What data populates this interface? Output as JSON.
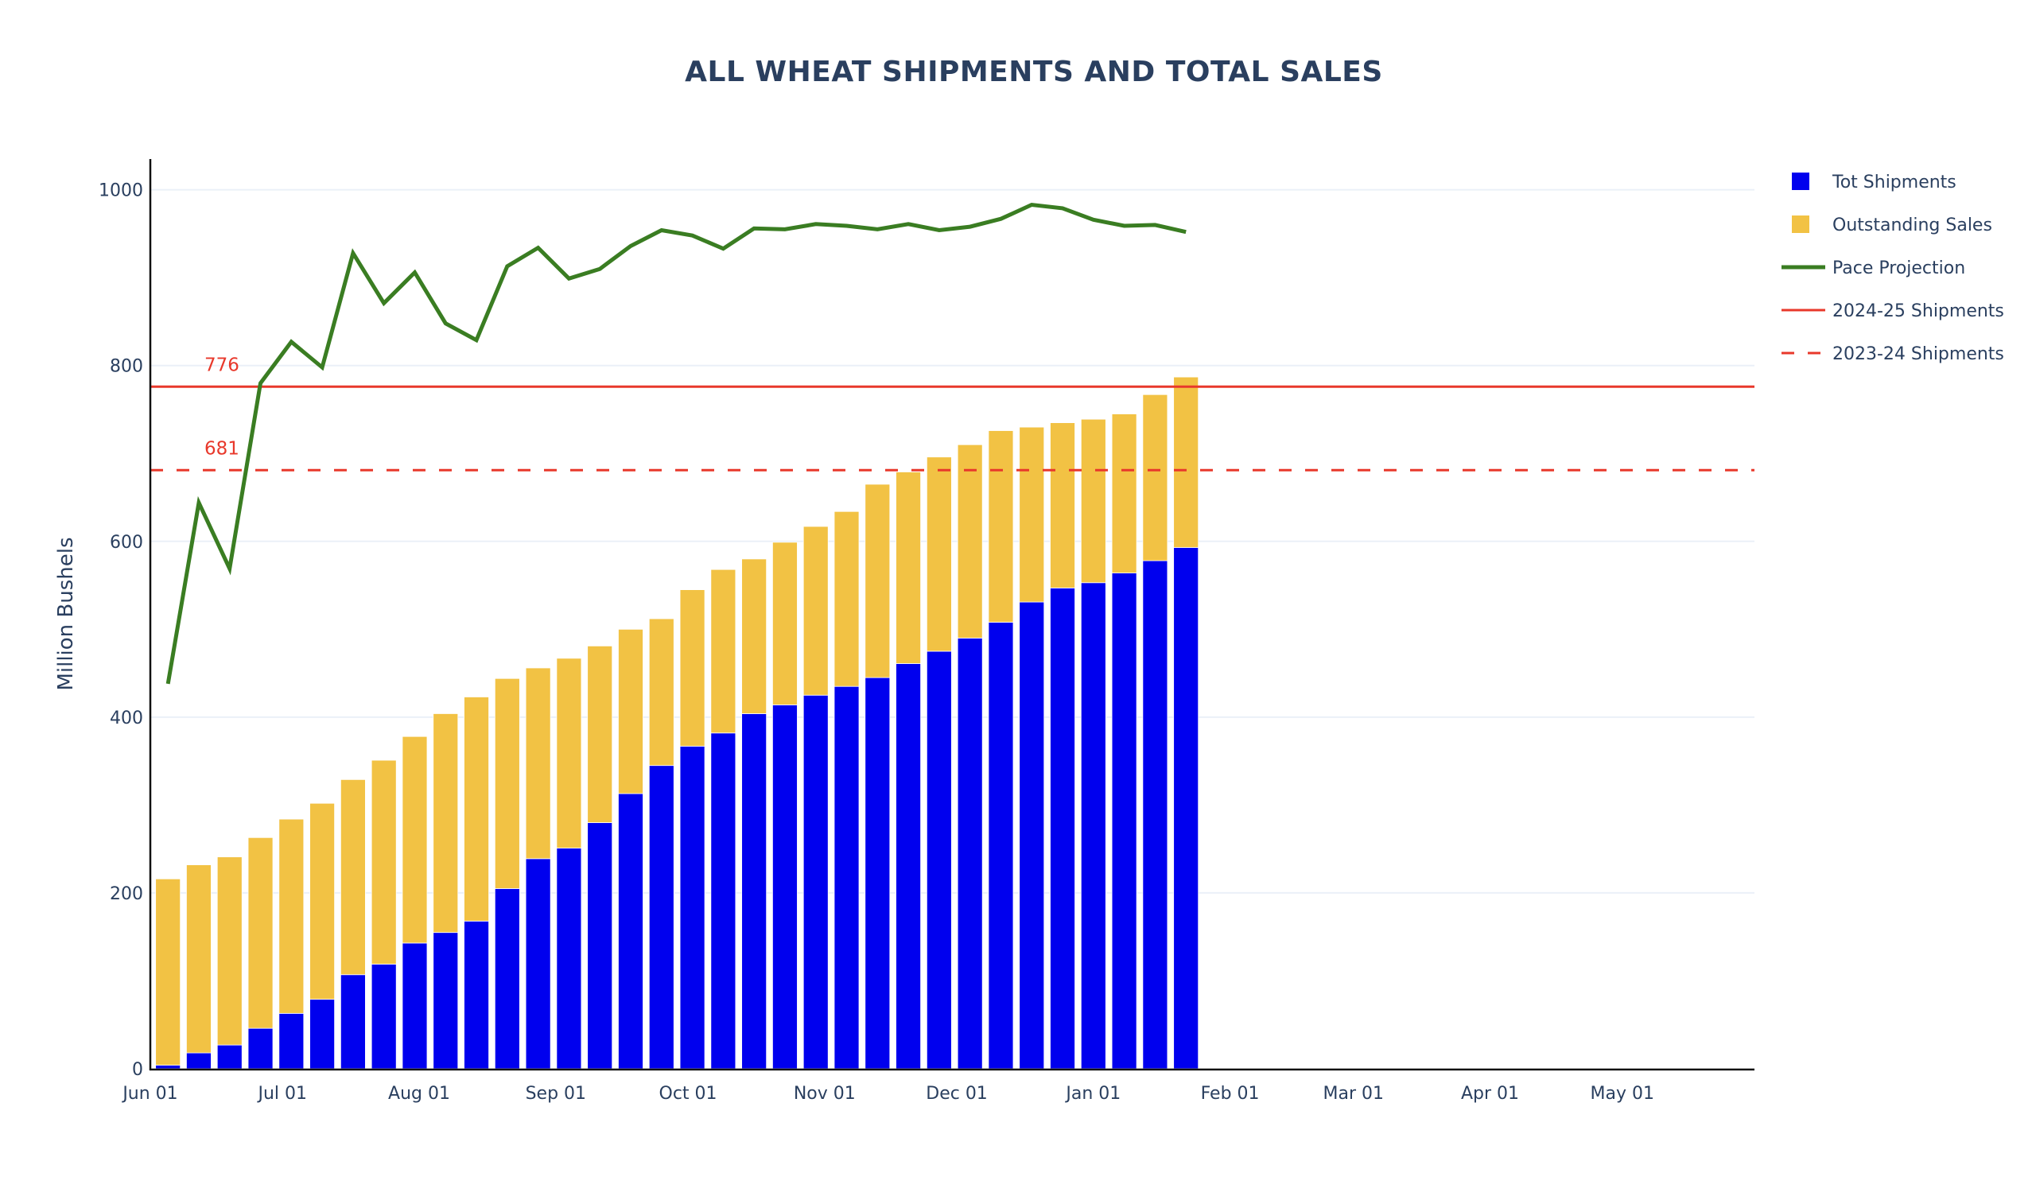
{
  "chart_data": {
    "type": "bar",
    "title": "ALL WHEAT SHIPMENTS AND TOTAL SALES",
    "xlabel": "",
    "ylabel": "Million Bushels",
    "barmode": "stack",
    "ylim": [
      0,
      1035
    ],
    "xlim": [
      "2024-06-01",
      "2025-05-31"
    ],
    "grid": true,
    "legend_position": "top-right",
    "y_ticks": [
      0,
      200,
      400,
      600,
      800,
      1000
    ],
    "x_ticks": [
      {
        "date": "2024-06-01",
        "label": "Jun 01"
      },
      {
        "date": "2024-07-01",
        "label": "Jul 01"
      },
      {
        "date": "2024-08-01",
        "label": "Aug 01"
      },
      {
        "date": "2024-09-01",
        "label": "Sep 01"
      },
      {
        "date": "2024-10-01",
        "label": "Oct 01"
      },
      {
        "date": "2024-11-01",
        "label": "Nov 01"
      },
      {
        "date": "2024-12-01",
        "label": "Dec 01"
      },
      {
        "date": "2025-01-01",
        "label": "Jan 01"
      },
      {
        "date": "2025-02-01",
        "label": "Feb 01"
      },
      {
        "date": "2025-03-01",
        "label": "Mar 01"
      },
      {
        "date": "2025-04-01",
        "label": "Apr 01"
      },
      {
        "date": "2025-05-01",
        "label": "May 01"
      }
    ],
    "x_start": "2024-06-05",
    "x_step_days": 7,
    "series": [
      {
        "name": "Tot Shipments",
        "kind": "bar",
        "color": "#0000ee",
        "values": [
          4,
          18,
          27,
          46,
          63,
          79,
          107,
          119,
          143,
          155,
          168,
          205,
          239,
          251,
          280,
          313,
          345,
          367,
          382,
          404,
          414,
          425,
          435,
          445,
          461,
          475,
          490,
          508,
          531,
          547,
          553,
          564,
          578,
          593
        ]
      },
      {
        "name": "Outstanding Sales",
        "kind": "bar",
        "color": "#f2c244",
        "values": [
          212,
          214,
          214,
          217,
          221,
          223,
          222,
          232,
          235,
          249,
          255,
          239,
          217,
          216,
          201,
          187,
          167,
          178,
          186,
          176,
          185,
          192,
          199,
          220,
          218,
          221,
          220,
          218,
          199,
          188,
          186,
          181,
          189,
          194
        ]
      },
      {
        "name": "Pace Projection",
        "kind": "line",
        "color": "#3a7d22",
        "values": [
          438,
          644,
          569,
          780,
          827,
          798,
          928,
          871,
          906,
          848,
          829,
          913,
          934,
          899,
          910,
          936,
          954,
          948,
          933,
          956,
          955,
          961,
          959,
          955,
          961,
          954,
          958,
          967,
          983,
          979,
          966,
          959,
          960,
          952
        ]
      }
    ],
    "reference_lines": [
      {
        "name": "2024-25 Shipments",
        "value": 776,
        "label": "776",
        "color": "#e8382b",
        "dash": "solid"
      },
      {
        "name": "2023-24 Shipments",
        "value": 681,
        "label": "681",
        "color": "#e8382b",
        "dash": "dash"
      }
    ],
    "legend": [
      {
        "name": "Tot Shipments",
        "symbol": "square",
        "color": "#0000ee"
      },
      {
        "name": "Outstanding Sales",
        "symbol": "square",
        "color": "#f2c244"
      },
      {
        "name": "Pace Projection",
        "symbol": "line",
        "color": "#3a7d22"
      },
      {
        "name": "2024-25 Shipments",
        "symbol": "line",
        "color": "#e8382b"
      },
      {
        "name": "2023-24 Shipments",
        "symbol": "dash",
        "color": "#e8382b"
      }
    ]
  }
}
